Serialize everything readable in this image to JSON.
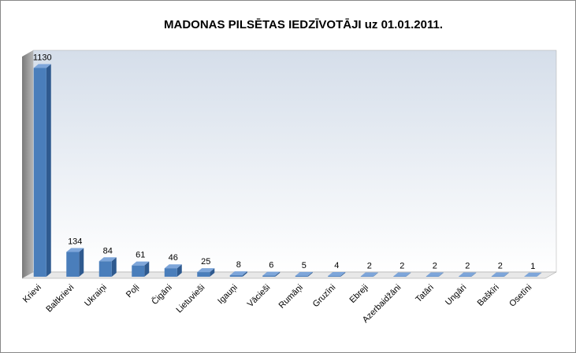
{
  "chart_data": {
    "type": "bar3d",
    "title": "MADONAS PILSĒTAS IEDZĪVOTĀJI  uz  01.01.2011.",
    "categories": [
      "Krievi",
      "Baltkrievi",
      "Ukraiņi",
      "Poļi",
      "Čigāni",
      "Lietuvieši",
      "Igauņi",
      "Vācieši",
      "Rumāņi",
      "Gruzīni",
      "Ebreji",
      "Azerbaidžāni",
      "Tatāri",
      "Ungāri",
      "Baškīri",
      "Osetīni"
    ],
    "values": [
      1130,
      134,
      84,
      61,
      46,
      25,
      8,
      6,
      5,
      4,
      2,
      2,
      2,
      2,
      2,
      1
    ],
    "color": "#4a7ebb",
    "ylim": [
      0,
      1200
    ]
  }
}
